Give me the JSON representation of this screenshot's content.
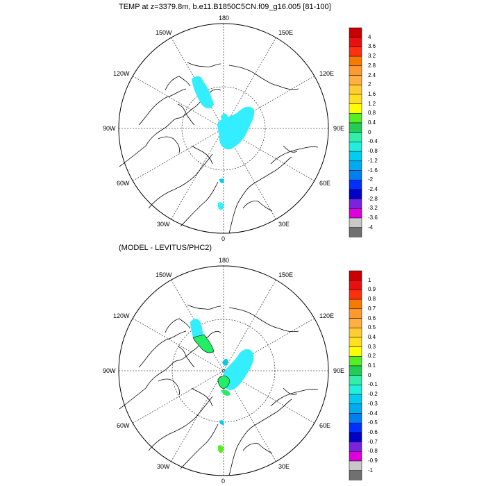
{
  "panels": [
    {
      "title": "TEMP at z=3379.8m, b.e11.B1850C5CN.f09_g16.005 [81-100]",
      "lon_labels": {
        "top": "180",
        "bottom": "0",
        "left": "90W",
        "right": "90E",
        "ul1": "150W",
        "ul2": "120W",
        "ur1": "150E",
        "ur2": "120E",
        "ll1": "60W",
        "ll2": "30W",
        "lr1": "60E",
        "lr2": "30E"
      },
      "colorbar": {
        "labels": [
          "4",
          "3.6",
          "3.2",
          "2.8",
          "2.4",
          "2",
          "1.6",
          "1.2",
          "0.8",
          "0.4",
          "0",
          "-0.4",
          "-0.8",
          "-1.2",
          "-1.6",
          "-2",
          "-2.4",
          "-2.8",
          "-3.2",
          "-3.6",
          "-4"
        ]
      }
    },
    {
      "title": "(MODEL - LEVITUS/PHC2)",
      "lon_labels": {
        "top": "180",
        "bottom": "0",
        "left": "90W",
        "right": "90E",
        "ul1": "150W",
        "ul2": "120W",
        "ur1": "150E",
        "ur2": "120E",
        "ll1": "60W",
        "ll2": "30W",
        "lr1": "60E",
        "lr2": "30E"
      },
      "colorbar": {
        "labels": [
          "1",
          "0.9",
          "0.8",
          "0.7",
          "0.6",
          "0.5",
          "0.4",
          "0.3",
          "0.2",
          "0.1",
          "0",
          "-0.1",
          "-0.2",
          "-0.3",
          "-0.4",
          "-0.5",
          "-0.6",
          "-0.7",
          "-0.8",
          "-0.9",
          "-1"
        ]
      }
    }
  ],
  "colorbar_colors": [
    "#c80000",
    "#e81010",
    "#ff3010",
    "#f57a00",
    "#ff9a30",
    "#ffb040",
    "#ffcc33",
    "#ffe020",
    "#ffff00",
    "#55ee22",
    "#22cc55",
    "#33eeaa",
    "#22eedd",
    "#00ccf0",
    "#00aaf0",
    "#0080f0",
    "#0030ff",
    "#0000c8",
    "#7a22dd",
    "#dd00dd",
    "#c8c8c8",
    "#707070"
  ],
  "fill_colors": {
    "cyan": "#33eeff",
    "green": "#22ee66"
  }
}
